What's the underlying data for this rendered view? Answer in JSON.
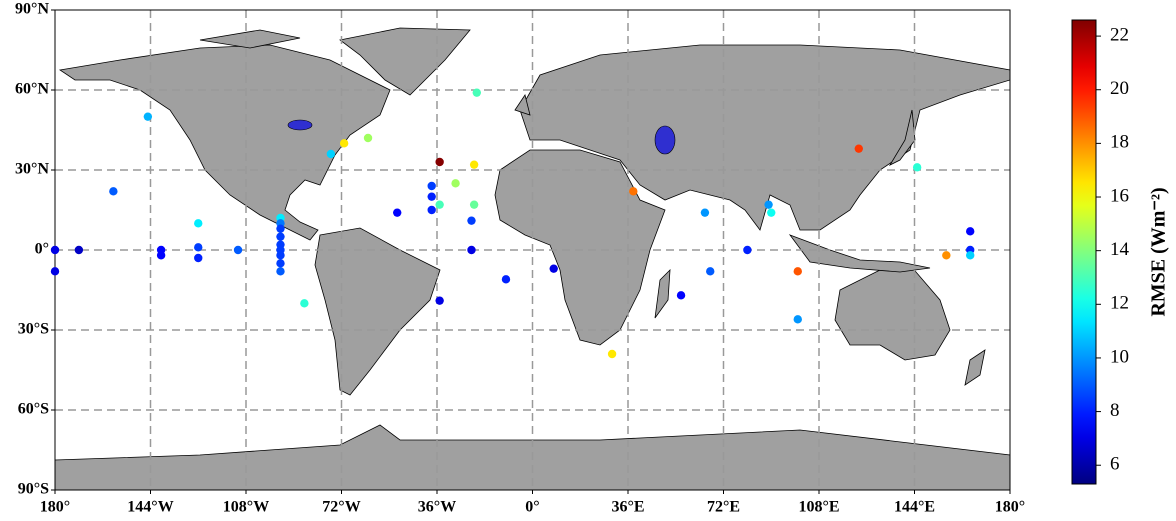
{
  "chart_data": {
    "type": "scatter",
    "colormap": "jet",
    "colorbar_label": "RMSE (Wm⁻²)",
    "clim": [
      5.3,
      22.6
    ],
    "cticks": [
      6,
      8,
      10,
      12,
      14,
      16,
      18,
      20,
      22
    ],
    "xlim": [
      -180,
      180
    ],
    "ylim": [
      -90,
      90
    ],
    "xticks": [
      {
        "value": -180,
        "label": "180°"
      },
      {
        "value": -144,
        "label": "144°W"
      },
      {
        "value": -108,
        "label": "108°W"
      },
      {
        "value": -72,
        "label": "72°W"
      },
      {
        "value": -36,
        "label": "36°W"
      },
      {
        "value": 0,
        "label": "0°"
      },
      {
        "value": 36,
        "label": "36°E"
      },
      {
        "value": 72,
        "label": "72°E"
      },
      {
        "value": 108,
        "label": "108°E"
      },
      {
        "value": 144,
        "label": "144°E"
      },
      {
        "value": 180,
        "label": "180°"
      }
    ],
    "yticks": [
      {
        "value": -90,
        "label": "90°S"
      },
      {
        "value": -60,
        "label": "60°S"
      },
      {
        "value": -30,
        "label": "30°S"
      },
      {
        "value": 0,
        "label": "0°"
      },
      {
        "value": 30,
        "label": "30°N"
      },
      {
        "value": 60,
        "label": "60°N"
      },
      {
        "value": 90,
        "label": "90°N"
      }
    ],
    "grid": true,
    "x": [
      -180,
      -180,
      -171,
      -158,
      -145,
      -140,
      -140,
      -126,
      -126,
      -126,
      -111,
      -95,
      -95,
      -95,
      -95,
      -95,
      -95,
      -95,
      -95,
      -95,
      -86,
      -76,
      -71,
      -62,
      -51,
      -38,
      -38,
      -38,
      -35,
      -35,
      -35,
      -29,
      -22,
      -21,
      -22,
      -23,
      -23,
      -10,
      8,
      30,
      38,
      56,
      65,
      67,
      81,
      89,
      90,
      100,
      100,
      123,
      145,
      156,
      165,
      165,
      165
    ],
    "y": [
      0,
      -8,
      0,
      22,
      50,
      0,
      -2,
      10,
      1,
      -3,
      0,
      12,
      10,
      8,
      5,
      2,
      0,
      -2,
      -5,
      -8,
      -20,
      36,
      40,
      42,
      14,
      24,
      20,
      15,
      33,
      17,
      -19,
      25,
      32,
      59,
      17,
      11,
      0,
      -11,
      -7,
      -39,
      22,
      -17,
      14,
      -8,
      0,
      17,
      14,
      -26,
      -8,
      38,
      31,
      -2,
      7,
      0,
      -2
    ],
    "values": [
      7,
      7,
      6.5,
      9,
      10.5,
      7.5,
      7.5,
      11.5,
      8.5,
      8,
      9,
      11.5,
      9.5,
      8.5,
      8.5,
      8.5,
      8.5,
      8.5,
      8.5,
      9,
      12.5,
      11,
      16.5,
      14.5,
      7.5,
      8.5,
      8,
      8,
      22.5,
      13,
      7,
      14.5,
      16.5,
      13,
      13.5,
      8.5,
      7,
      8,
      7,
      16.5,
      18.5,
      7.5,
      10,
      9,
      8,
      10,
      12,
      10,
      19,
      19.5,
      12.5,
      18,
      7.5,
      8,
      11
    ]
  }
}
